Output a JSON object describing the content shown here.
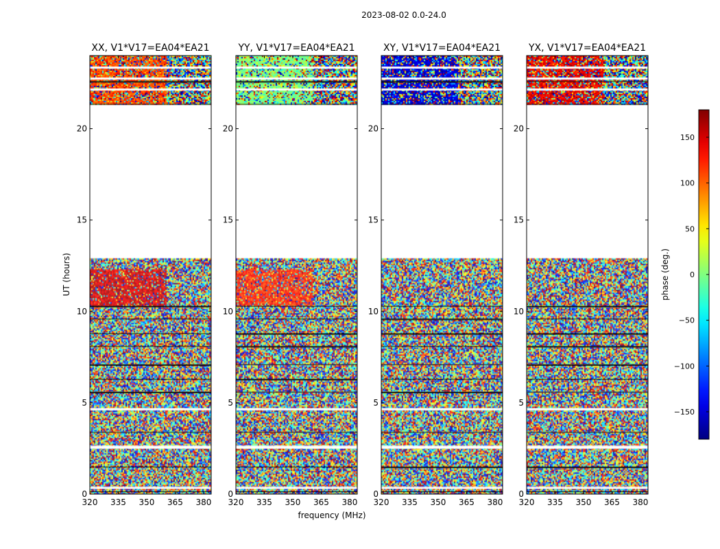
{
  "suptitle": "2023-08-02 0.0-24.0",
  "shared": {
    "ylabel": "UT (hours)",
    "xlabel": "frequency (MHz)",
    "xlim": [
      320,
      384
    ],
    "ylim": [
      0,
      24
    ],
    "xticks": [
      320,
      335,
      350,
      365,
      380
    ],
    "yticks": [
      0,
      5,
      10,
      15,
      20
    ]
  },
  "colorbar": {
    "label": "phase (deg.)",
    "colormap": "jet",
    "range": [
      -180,
      180
    ],
    "ticks": [
      -150,
      -100,
      -50,
      0,
      50,
      100,
      150
    ],
    "tick_labels": [
      "−150",
      "−100",
      "−50",
      "0",
      "50",
      "100",
      "150"
    ]
  },
  "chart_data": [
    {
      "type": "heatmap",
      "title": "XX, V1*V17=EA04*EA21",
      "xlabel": "",
      "ylabel": "UT (hours)",
      "xlim": [
        320,
        384
      ],
      "ylim": [
        0,
        24
      ],
      "value_unit": "phase (deg.)",
      "data_coverage_hours": [
        [
          0.0,
          12.9
        ],
        [
          21.3,
          24.0
        ]
      ],
      "no_data_hours": [
        12.9,
        21.3
      ],
      "coherent_region": {
        "hours": [
          10.3,
          12.3
        ],
        "freq_mhz": [
          320,
          360
        ],
        "approx_phase_deg": 150
      },
      "late_band_phase_deg": 110
    },
    {
      "type": "heatmap",
      "title": "YY, V1*V17=EA04*EA21",
      "xlabel": "",
      "ylabel": "",
      "xlim": [
        320,
        384
      ],
      "ylim": [
        0,
        24
      ],
      "value_unit": "phase (deg.)",
      "data_coverage_hours": [
        [
          0.0,
          12.9
        ],
        [
          21.3,
          24.0
        ]
      ],
      "no_data_hours": [
        12.9,
        21.3
      ],
      "coherent_region": {
        "hours": [
          10.3,
          12.3
        ],
        "freq_mhz": [
          320,
          360
        ],
        "approx_phase_deg": 125
      },
      "late_band_phase_deg": 0
    },
    {
      "type": "heatmap",
      "title": "XY, V1*V17=EA04*EA21",
      "xlabel": "",
      "ylabel": "",
      "xlim": [
        320,
        384
      ],
      "ylim": [
        0,
        24
      ],
      "value_unit": "phase (deg.)",
      "data_coverage_hours": [
        [
          0.0,
          12.9
        ],
        [
          21.3,
          24.0
        ]
      ],
      "no_data_hours": [
        12.9,
        21.3
      ],
      "coherent_region": null,
      "late_band_phase_deg": -150
    },
    {
      "type": "heatmap",
      "title": "YX, V1*V17=EA04*EA21",
      "xlabel": "",
      "ylabel": "",
      "xlim": [
        320,
        384
      ],
      "ylim": [
        0,
        24
      ],
      "value_unit": "phase (deg.)",
      "data_coverage_hours": [
        [
          0.0,
          12.9
        ],
        [
          21.3,
          24.0
        ]
      ],
      "no_data_hours": [
        12.9,
        21.3
      ],
      "coherent_region": null,
      "late_band_phase_deg": 140
    }
  ]
}
